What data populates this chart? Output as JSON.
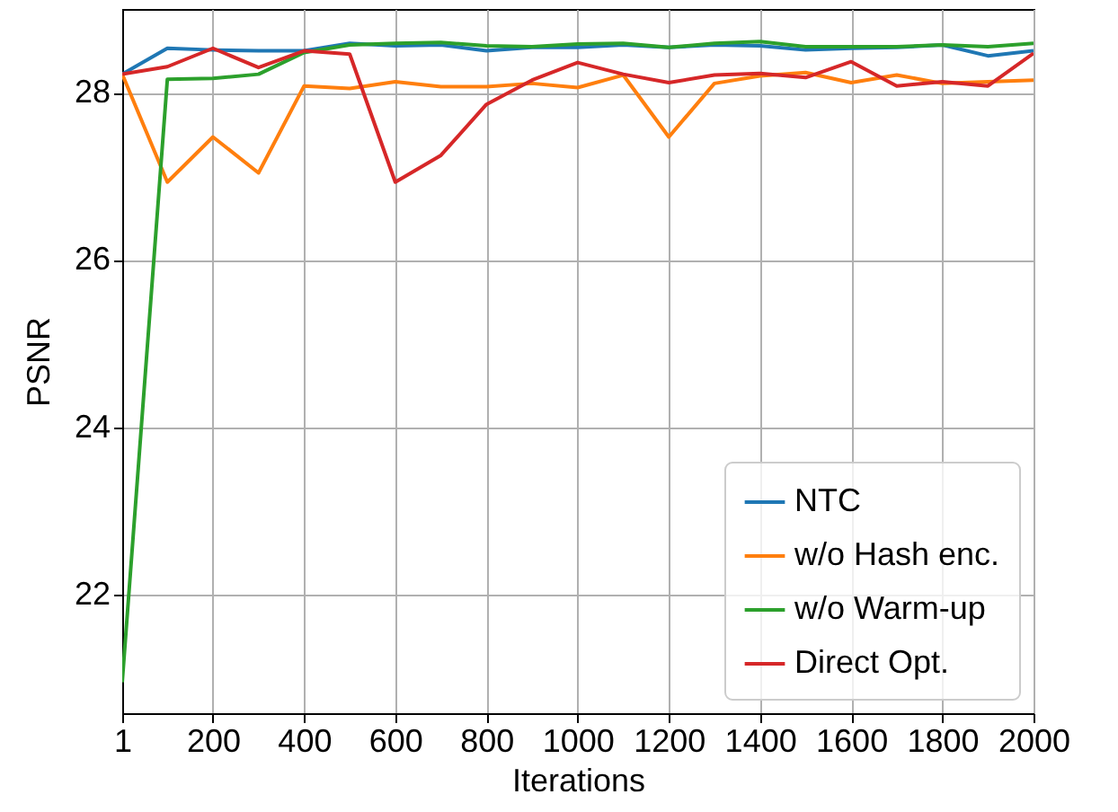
{
  "chart_data": {
    "type": "line",
    "xlabel": "Iterations",
    "ylabel": "PSNR",
    "x": [
      1,
      100,
      200,
      300,
      400,
      500,
      600,
      700,
      800,
      900,
      1000,
      1100,
      1200,
      1300,
      1400,
      1500,
      1600,
      1700,
      1800,
      1900,
      2000
    ],
    "series": [
      {
        "name": "NTC",
        "color": "#1f77b4",
        "values": [
          28.22,
          28.53,
          28.51,
          28.5,
          28.5,
          28.59,
          28.56,
          28.57,
          28.5,
          28.54,
          28.54,
          28.57,
          28.54,
          28.57,
          28.56,
          28.51,
          28.53,
          28.54,
          28.57,
          28.44,
          28.5
        ]
      },
      {
        "name": "w/o Hash enc.",
        "color": "#ff7f0e",
        "values": [
          28.22,
          26.93,
          27.47,
          27.04,
          28.08,
          28.05,
          28.13,
          28.07,
          28.07,
          28.11,
          28.06,
          28.21,
          27.47,
          28.11,
          28.2,
          28.24,
          28.12,
          28.21,
          28.11,
          28.13,
          28.15
        ]
      },
      {
        "name": "w/o Warm-up",
        "color": "#2ca02c",
        "values": [
          20.95,
          28.16,
          28.17,
          28.22,
          28.48,
          28.57,
          28.59,
          28.6,
          28.56,
          28.55,
          28.58,
          28.59,
          28.54,
          28.59,
          28.61,
          28.55,
          28.55,
          28.55,
          28.57,
          28.55,
          28.59
        ]
      },
      {
        "name": "Direct Opt.",
        "color": "#d62728",
        "values": [
          28.22,
          28.31,
          28.53,
          28.3,
          28.5,
          28.46,
          26.93,
          27.25,
          27.86,
          28.15,
          28.36,
          28.22,
          28.12,
          28.21,
          28.23,
          28.18,
          28.37,
          28.08,
          28.13,
          28.08,
          28.47
        ]
      }
    ],
    "xlim": [
      1,
      2000
    ],
    "xticks": [
      1,
      200,
      400,
      600,
      800,
      1000,
      1200,
      1400,
      1600,
      1800,
      2000
    ],
    "ylim": [
      20.58,
      29.0
    ],
    "yticks": [
      22,
      24,
      26,
      28
    ],
    "grid": true,
    "legend": "bottom right",
    "line_style": "solid",
    "marker": "none"
  }
}
